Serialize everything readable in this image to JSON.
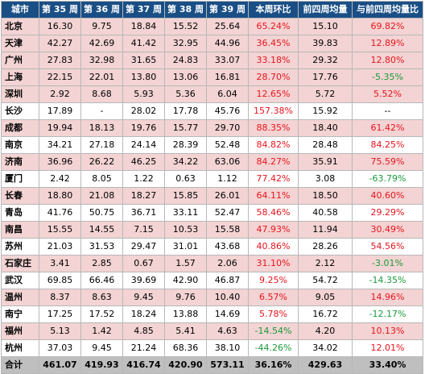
{
  "headers": [
    "城市",
    "第 35 周",
    "第 36 周",
    "第 37 周",
    "第 38 周",
    "第 39 周",
    "本周环比",
    "前四周均量",
    "与前四周均量比"
  ],
  "rows": [
    [
      "北京",
      "16.30",
      "9.75",
      "18.84",
      "15.52",
      "25.64",
      "65.24%",
      "15.10",
      "69.82%"
    ],
    [
      "天津",
      "42.27",
      "42.69",
      "41.42",
      "32.95",
      "44.96",
      "36.45%",
      "39.83",
      "12.89%"
    ],
    [
      "广州",
      "27.83",
      "32.98",
      "31.65",
      "24.83",
      "33.07",
      "33.18%",
      "29.32",
      "12.80%"
    ],
    [
      "上海",
      "22.15",
      "22.01",
      "13.80",
      "13.06",
      "16.81",
      "28.70%",
      "17.76",
      "-5.35%"
    ],
    [
      "深圳",
      "2.92",
      "8.68",
      "5.93",
      "5.36",
      "6.04",
      "12.65%",
      "5.72",
      "5.52%"
    ],
    [
      "长沙",
      "17.89",
      "-",
      "28.02",
      "17.78",
      "45.76",
      "157.38%",
      "15.92",
      "--"
    ],
    [
      "成都",
      "19.94",
      "18.13",
      "19.76",
      "15.77",
      "29.70",
      "88.35%",
      "18.40",
      "61.42%"
    ],
    [
      "南京",
      "34.21",
      "27.18",
      "24.14",
      "28.39",
      "52.48",
      "84.82%",
      "28.48",
      "84.25%"
    ],
    [
      "济南",
      "36.96",
      "26.22",
      "46.25",
      "34.22",
      "63.06",
      "84.27%",
      "35.91",
      "75.59%"
    ],
    [
      "厦门",
      "2.42",
      "8.05",
      "1.22",
      "0.63",
      "1.12",
      "77.42%",
      "3.08",
      "-63.79%"
    ],
    [
      "长春",
      "18.80",
      "21.08",
      "18.27",
      "15.85",
      "26.01",
      "64.11%",
      "18.50",
      "40.60%"
    ],
    [
      "青岛",
      "41.76",
      "50.75",
      "36.71",
      "33.11",
      "52.47",
      "58.46%",
      "40.58",
      "29.29%"
    ],
    [
      "南昌",
      "15.55",
      "14.55",
      "7.15",
      "10.53",
      "15.58",
      "47.93%",
      "11.94",
      "30.49%"
    ],
    [
      "苏州",
      "21.03",
      "31.53",
      "29.47",
      "31.01",
      "43.68",
      "40.86%",
      "28.26",
      "54.56%"
    ],
    [
      "石家庄",
      "3.41",
      "2.85",
      "0.67",
      "1.57",
      "2.06",
      "31.10%",
      "2.12",
      "-3.01%"
    ],
    [
      "武汉",
      "69.85",
      "66.46",
      "39.69",
      "42.90",
      "46.87",
      "9.25%",
      "54.72",
      "-14.35%"
    ],
    [
      "温州",
      "8.37",
      "8.63",
      "9.45",
      "9.76",
      "10.40",
      "6.57%",
      "9.05",
      "14.96%"
    ],
    [
      "南宁",
      "17.25",
      "17.52",
      "18.24",
      "13.88",
      "14.69",
      "5.78%",
      "16.72",
      "-12.17%"
    ],
    [
      "福州",
      "5.13",
      "1.42",
      "4.85",
      "5.41",
      "4.63",
      "-14.54%",
      "4.20",
      "10.13%"
    ],
    [
      "杭州",
      "37.03",
      "9.45",
      "21.24",
      "68.36",
      "38.10",
      "-44.26%",
      "34.02",
      "12.01%"
    ]
  ],
  "total": [
    "合计",
    "461.07",
    "419.93",
    "416.74",
    "420.90",
    "573.11",
    "36.16%",
    "429.63",
    "33.40%"
  ],
  "colors": {
    "header_bg": "#1a4f86",
    "header_text": "#ffffff",
    "stripe_pink": "#f3d3d3",
    "positive": "#e8141d",
    "negative": "#1a9a3c",
    "total_bg": "#bfbfbf"
  }
}
